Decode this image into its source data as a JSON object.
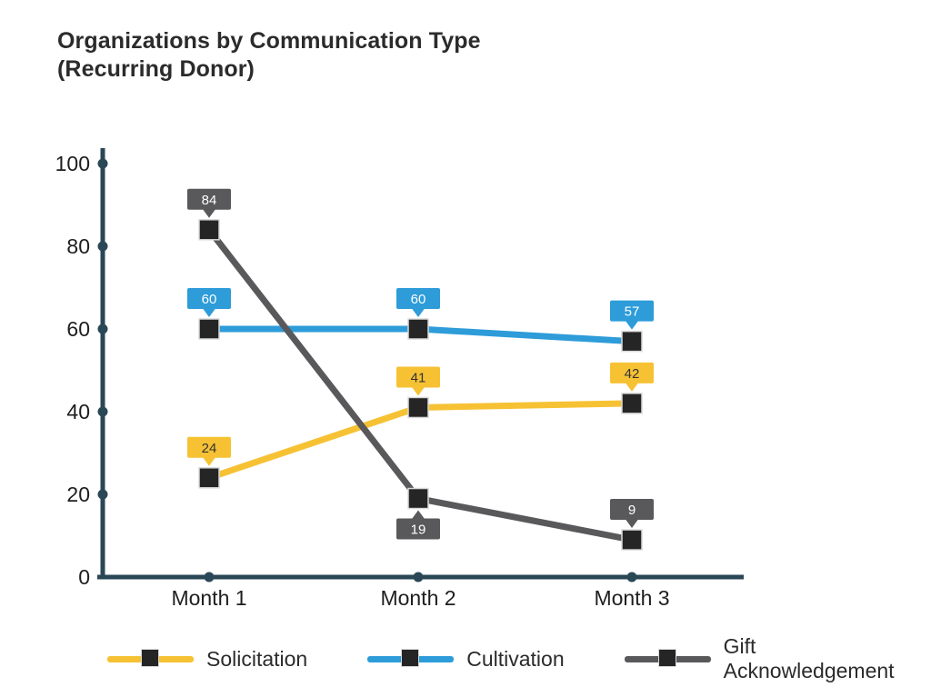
{
  "title": {
    "line1": "Organizations by Communication Type",
    "line2": "(Recurring Donor)"
  },
  "chart_data": {
    "type": "line",
    "title": "Organizations by Communication Type (Recurring Donor)",
    "categories": [
      "Month 1",
      "Month 2",
      "Month 3"
    ],
    "series": [
      {
        "name": "Solicitation",
        "color": "#F6C234",
        "label_text_color": "#333333",
        "values": [
          24,
          41,
          42
        ],
        "label_placements": [
          "above",
          "above",
          "above"
        ]
      },
      {
        "name": "Cultivation",
        "color": "#2D9CD9",
        "label_text_color": "#FFFFFF",
        "values": [
          60,
          60,
          57
        ],
        "label_placements": [
          "above",
          "above",
          "above"
        ]
      },
      {
        "name": "Gift Acknowledgement",
        "color": "#59595B",
        "label_text_color": "#FFFFFF",
        "values": [
          84,
          19,
          9
        ],
        "label_placements": [
          "above",
          "below",
          "above"
        ]
      }
    ],
    "ylim": [
      0,
      100
    ],
    "yticks": [
      0,
      20,
      40,
      60,
      80,
      100
    ],
    "grid": false,
    "data_labels": true,
    "legend_position": "bottom",
    "axis_color": "#2A4756",
    "marker_color": "#252525",
    "marker_border_color": "#D9D9D9",
    "xlabel": "",
    "ylabel": ""
  }
}
